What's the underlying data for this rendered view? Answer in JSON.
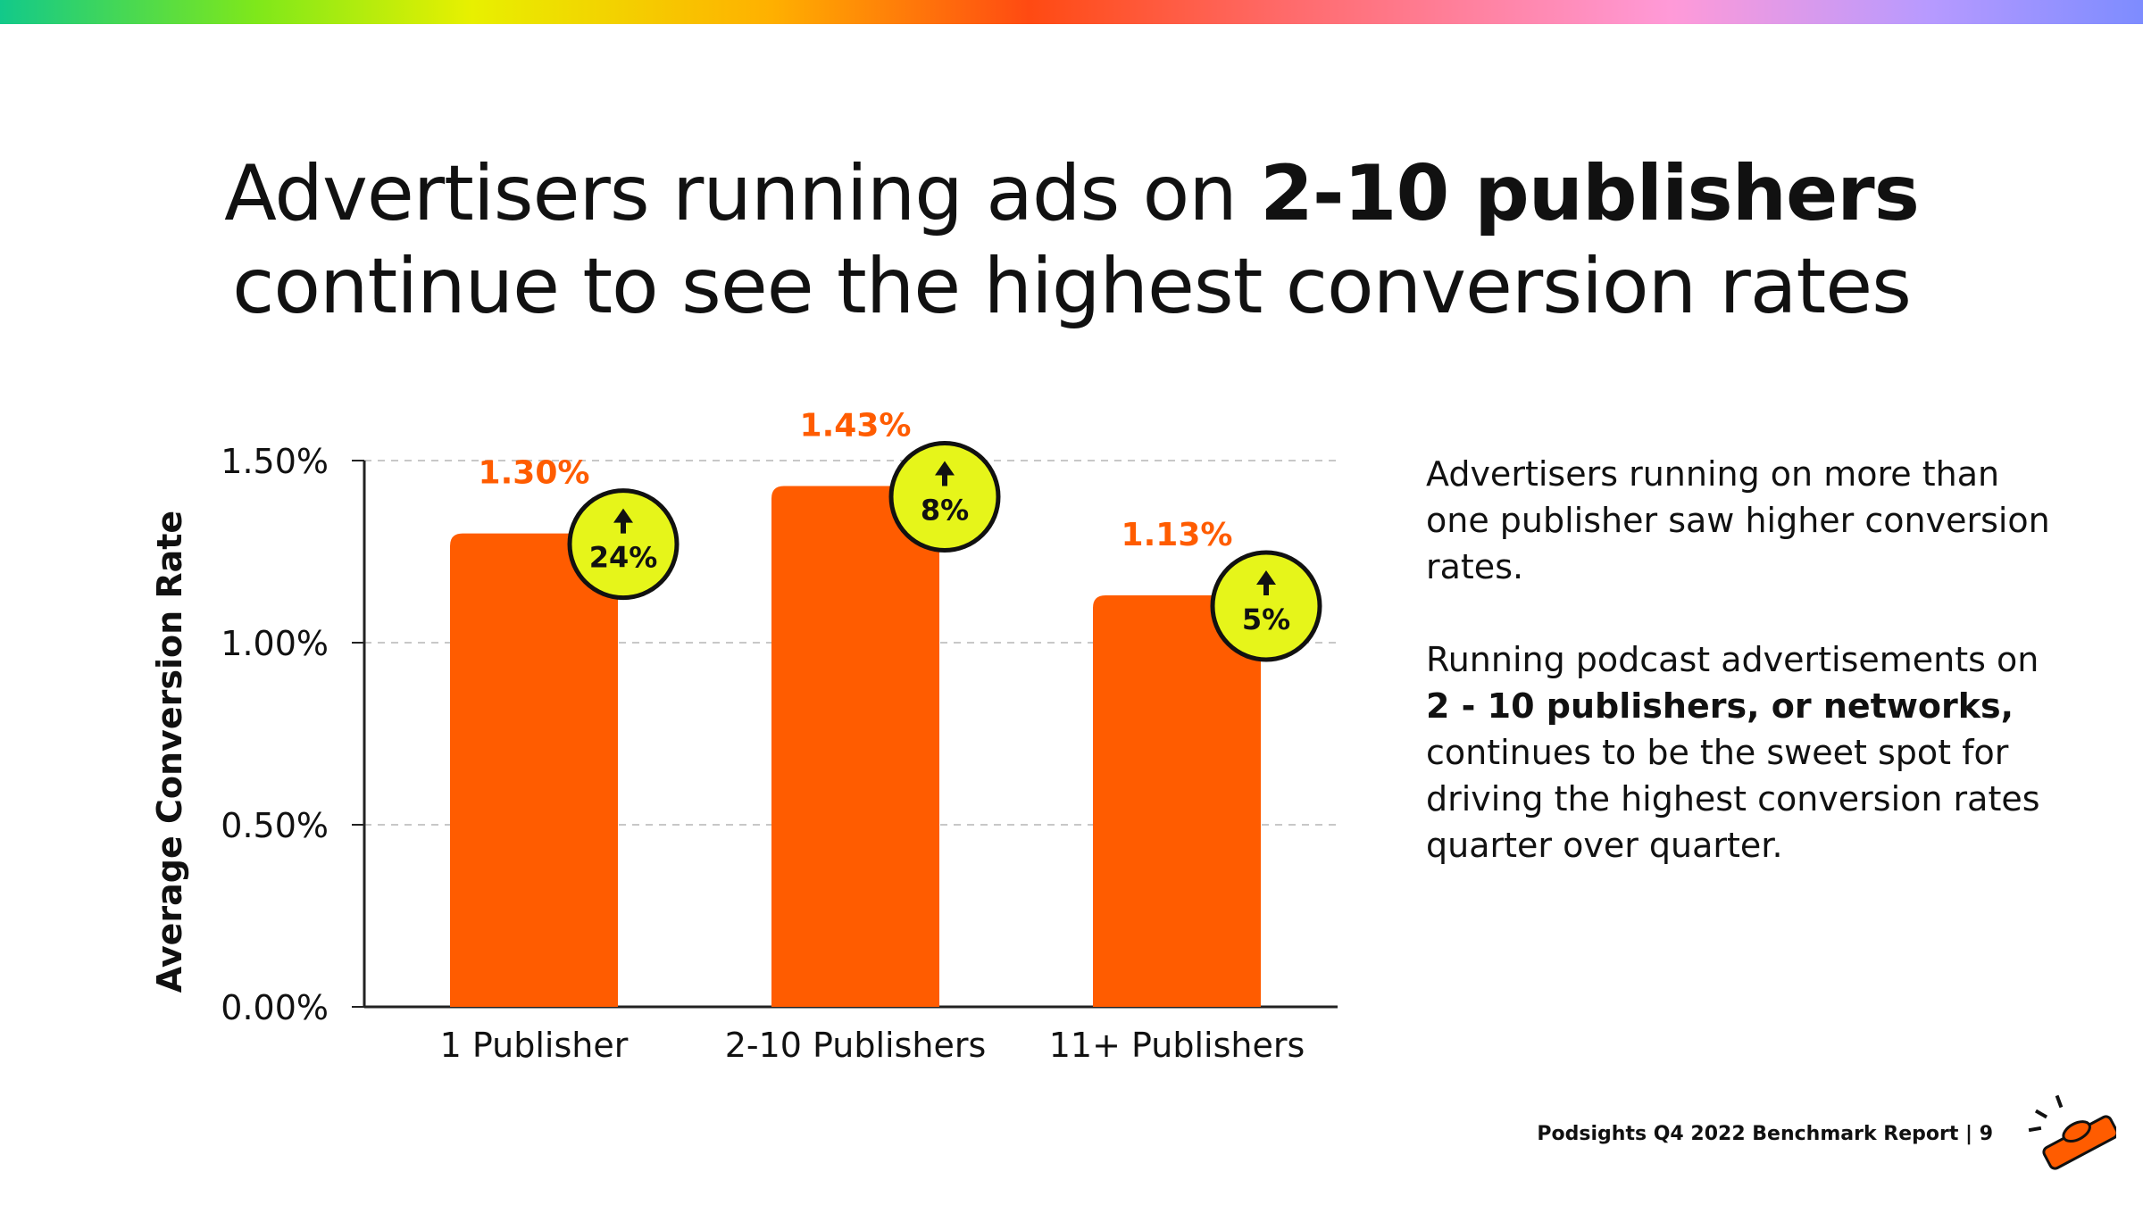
{
  "title": {
    "line1_pre": "Advertisers running ads on ",
    "line1_bold": "2-10 publishers",
    "line2": "continue to see the highest conversion rates"
  },
  "side_text": {
    "para1": "Advertisers running on more than one publisher saw higher conversion rates.",
    "para2_pre": "Running podcast advertisements on",
    "para2_bold": "2 - 10 publishers, or networks,",
    "para2_post": "continues to be the sweet spot for driving the highest conversion rates quarter over quarter."
  },
  "footer": {
    "text": "Podsights Q4 2022 Benchmark Report | 9"
  },
  "colors": {
    "bar": "#ff5c00",
    "value_label": "#ff5c00",
    "badge_fill": "#e6f51a",
    "badge_stroke": "#111111",
    "grid": "#c8c8c8",
    "axis": "#222222"
  },
  "chart_data": {
    "type": "bar",
    "categories": [
      "1 Publisher",
      "2-10 Publishers",
      "11+ Publishers"
    ],
    "values": [
      1.3,
      1.43,
      1.13
    ],
    "value_labels": [
      "1.30%",
      "1.43%",
      "1.13%"
    ],
    "badges": [
      {
        "arrow": "up",
        "label": "24%"
      },
      {
        "arrow": "up",
        "label": "8%"
      },
      {
        "arrow": "up",
        "label": "5%"
      }
    ],
    "ylabel": "Average Conversion Rate",
    "xlabel": "",
    "ylim": [
      0,
      1.5
    ],
    "yticks": [
      0,
      0.5,
      1.0,
      1.5
    ],
    "ytick_labels": [
      "0.00%",
      "0.50%",
      "1.00%",
      "1.50%"
    ],
    "grid": "horizontal-dashed",
    "legend": "none"
  }
}
